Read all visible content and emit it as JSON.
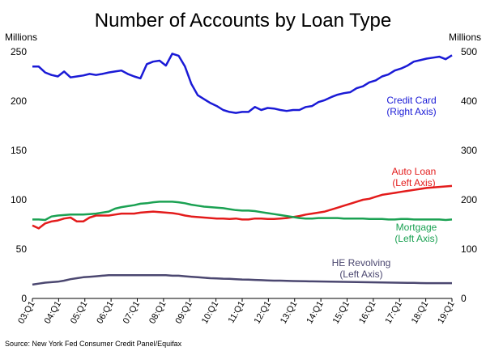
{
  "chart_data": {
    "type": "line",
    "title": "Number of Accounts by Loan Type",
    "left_unit": "Millions",
    "right_unit": "Millions",
    "left_ylim": [
      0,
      250
    ],
    "right_ylim": [
      0,
      500
    ],
    "left_ticks": [
      "0",
      "50",
      "100",
      "150",
      "200",
      "250"
    ],
    "right_ticks": [
      "0",
      "100",
      "200",
      "300",
      "400",
      "500"
    ],
    "x_tick_labels": [
      "03:Q1",
      "04:Q1",
      "05:Q1",
      "06:Q1",
      "07:Q1",
      "08:Q1",
      "09:Q1",
      "10:Q1",
      "11:Q1",
      "12:Q1",
      "13:Q1",
      "14:Q1",
      "15:Q1",
      "16:Q1",
      "17:Q1",
      "18:Q1",
      "19:Q1"
    ],
    "x_start": "2003:Q1",
    "x_end": "2019:Q1",
    "grid": false,
    "source": "Source: New York Fed Consumer Credit Panel/Equifax",
    "series": [
      {
        "key": "credit",
        "color": "#1a1ad6",
        "axis": "right",
        "label_lines": [
          "Credit Card",
          "(Right Axis)"
        ],
        "values": [
          470,
          470,
          458,
          453,
          450,
          460,
          448,
          450,
          452,
          455,
          453,
          455,
          458,
          460,
          462,
          455,
          450,
          446,
          475,
          480,
          482,
          472,
          496,
          492,
          470,
          435,
          412,
          404,
          396,
          390,
          382,
          378,
          376,
          378,
          378,
          388,
          382,
          386,
          385,
          382,
          380,
          382,
          382,
          388,
          390,
          398,
          402,
          408,
          413,
          416,
          418,
          426,
          430,
          438,
          442,
          450,
          454,
          462,
          466,
          472,
          480,
          483,
          486,
          488,
          490,
          485,
          493
        ]
      },
      {
        "key": "auto",
        "color": "#e31b1b",
        "axis": "left",
        "label_lines": [
          "Auto Loan",
          "(Left Axis)"
        ],
        "values": [
          74,
          71,
          76,
          78,
          79,
          81,
          82,
          78,
          78,
          82,
          84,
          84,
          84,
          85,
          86,
          86,
          86,
          87,
          87.5,
          88,
          87.5,
          87,
          86.5,
          85.5,
          84,
          83,
          82.5,
          82,
          81.5,
          81,
          81,
          80.5,
          81,
          80,
          80,
          81,
          81,
          80.5,
          80.5,
          81,
          81.5,
          82.5,
          83.5,
          85,
          86,
          87,
          88,
          90,
          92,
          94,
          96,
          98,
          100,
          101,
          103,
          105,
          106,
          107,
          108,
          109,
          110,
          111,
          112,
          112.5,
          113,
          113.5,
          114
        ]
      },
      {
        "key": "mortgage",
        "color": "#1aa152",
        "axis": "left",
        "label_lines": [
          "Mortgage",
          "(Left Axis)"
        ],
        "values": [
          80,
          80,
          79.5,
          83,
          84,
          84.5,
          85,
          85,
          85,
          85.5,
          86,
          87,
          88,
          91,
          92.5,
          93.5,
          94.5,
          96,
          96.5,
          97.5,
          98,
          98,
          98,
          97.5,
          96.5,
          95,
          94,
          93,
          92.5,
          92,
          91.5,
          90.5,
          89.5,
          89,
          89,
          88.5,
          87.5,
          86.5,
          85.5,
          84.5,
          83.5,
          82.5,
          81.5,
          81,
          81,
          81.5,
          81.5,
          81.5,
          81.5,
          81,
          81,
          81,
          81,
          80.5,
          80.5,
          80.5,
          80,
          80,
          80.5,
          80.5,
          80,
          80,
          80,
          80,
          80,
          79.5,
          80
        ]
      },
      {
        "key": "he",
        "color": "#4b4770",
        "axis": "left",
        "label_lines": [
          "HE Revolving",
          "(Left Axis)"
        ],
        "values": [
          14,
          15,
          16,
          16.5,
          17,
          18,
          19.5,
          20.5,
          21.5,
          22,
          22.5,
          23,
          23.5,
          23.5,
          23.5,
          23.5,
          23.5,
          23.5,
          23.5,
          23.5,
          23.5,
          23.5,
          23,
          23,
          22.5,
          22,
          21.5,
          21,
          20.5,
          20.3,
          20,
          19.8,
          19.5,
          19.2,
          19,
          18.8,
          18.5,
          18.3,
          18,
          18,
          17.8,
          17.6,
          17.5,
          17.4,
          17.3,
          17.2,
          17.1,
          17,
          16.9,
          16.8,
          16.7,
          16.6,
          16.5,
          16.4,
          16.3,
          16.2,
          16.1,
          16,
          15.9,
          15.8,
          15.7,
          15.6,
          15.5,
          15.5,
          15.5,
          15.5,
          15.5
        ]
      }
    ]
  }
}
